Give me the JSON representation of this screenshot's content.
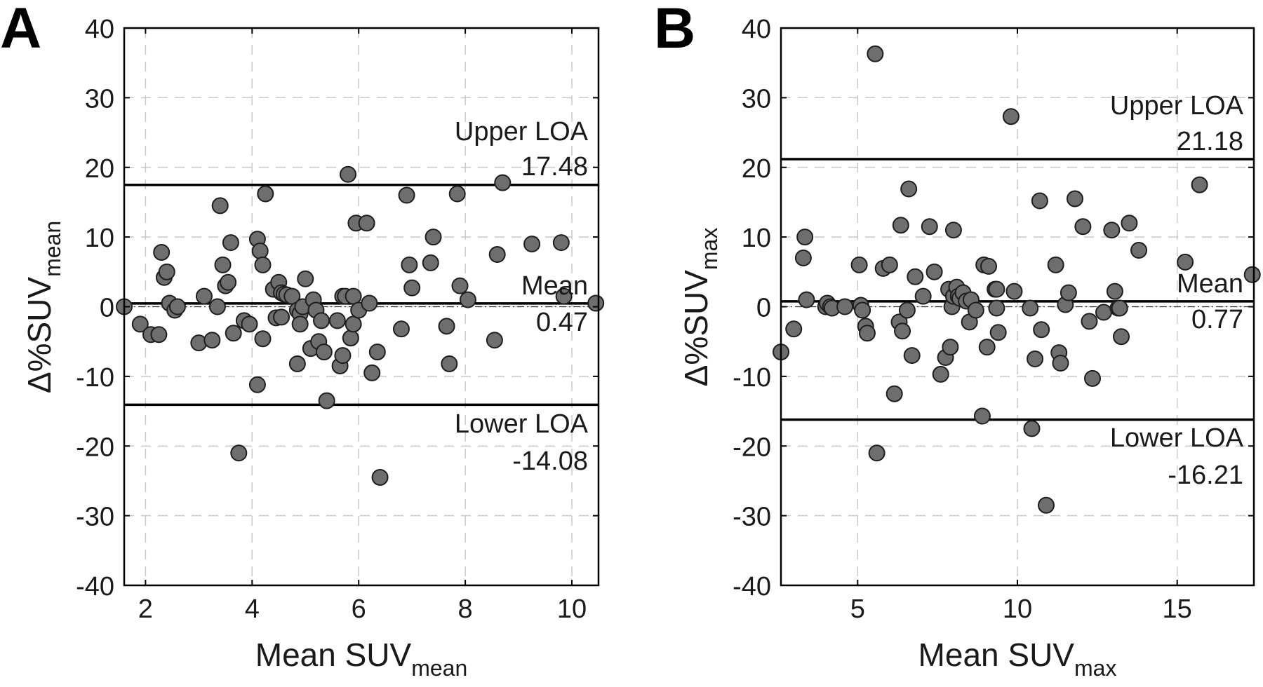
{
  "chart_data": [
    {
      "type": "scatter",
      "panel_label": "A",
      "xlabel": "Mean SUV",
      "xlabel_sub": "mean",
      "ylabel_prefix": "Δ%SUV",
      "ylabel_sub": "mean",
      "xlim": [
        1.6,
        10.5
      ],
      "ylim": [
        -40,
        40
      ],
      "xticks": [
        2,
        4,
        6,
        8,
        10
      ],
      "yticks": [
        -40,
        -30,
        -20,
        -10,
        0,
        10,
        20,
        30,
        40
      ],
      "grid": true,
      "points_x": [
        1.6,
        1.9,
        2.1,
        2.25,
        2.3,
        2.35,
        2.4,
        2.45,
        2.55,
        2.6,
        3.0,
        3.1,
        3.25,
        3.35,
        3.4,
        3.45,
        3.5,
        3.55,
        3.6,
        3.65,
        3.75,
        3.85,
        3.95,
        4.1,
        4.1,
        4.15,
        4.2,
        4.2,
        4.25,
        4.4,
        4.45,
        4.5,
        4.55,
        4.55,
        4.6,
        4.65,
        4.75,
        4.85,
        4.85,
        4.9,
        4.9,
        4.95,
        5.0,
        5.1,
        5.15,
        5.2,
        5.25,
        5.3,
        5.35,
        5.4,
        5.6,
        5.65,
        5.7,
        5.7,
        5.75,
        5.8,
        5.85,
        5.9,
        5.9,
        5.95,
        6.0,
        6.15,
        6.2,
        6.25,
        6.35,
        6.4,
        6.8,
        6.9,
        6.95,
        7.0,
        7.35,
        7.4,
        7.65,
        7.7,
        7.85,
        7.9,
        8.05,
        8.55,
        8.6,
        8.7,
        9.25,
        9.8,
        9.85,
        10.45
      ],
      "points_y": [
        0,
        -2.5,
        -4,
        -4,
        7.8,
        4.2,
        5,
        0.5,
        -0.5,
        0,
        -5.2,
        1.5,
        -4.8,
        0,
        14.5,
        6,
        3,
        3.5,
        9.2,
        -3.8,
        -21,
        -2,
        -2.5,
        -11.2,
        9.7,
        8,
        6,
        -4.6,
        16.2,
        2.5,
        -1.6,
        3.5,
        -1.5,
        2,
        1.8,
        1.7,
        1.5,
        -0.5,
        -8.2,
        -1,
        -2.5,
        0,
        4,
        -6,
        1,
        -0.5,
        -5,
        -2,
        -6.5,
        -13.5,
        -2,
        -8.5,
        -7,
        1.5,
        1.5,
        19,
        -4.5,
        -2.5,
        1.5,
        12,
        -0.5,
        12,
        0.5,
        -9.5,
        -6.5,
        -24.5,
        -3.2,
        16,
        6,
        2.7,
        6.3,
        10,
        -2.8,
        -8.2,
        16.2,
        3,
        1,
        -4.8,
        7.5,
        17.8,
        9,
        9.2,
        1.5,
        0.5
      ],
      "mean_line": 0.47,
      "upper_loa": 17.48,
      "lower_loa": -14.08,
      "labels": {
        "upper_title": "Upper LOA",
        "upper_value": "17.48",
        "mean_title": "Mean",
        "mean_value": "0.47",
        "lower_title": "Lower LOA",
        "lower_value": "-14.08"
      }
    },
    {
      "type": "scatter",
      "panel_label": "B",
      "xlabel": "Mean SUV",
      "xlabel_sub": "max",
      "ylabel_prefix": "Δ%SUV",
      "ylabel_sub": "max",
      "xlim": [
        2.6,
        17.4
      ],
      "ylim": [
        -40,
        40
      ],
      "xticks": [
        5,
        10,
        15
      ],
      "yticks": [
        -40,
        -30,
        -20,
        -10,
        0,
        10,
        20,
        30,
        40
      ],
      "grid": true,
      "points_x": [
        2.6,
        3.0,
        3.3,
        3.35,
        3.4,
        4.0,
        4.05,
        4.15,
        4.2,
        4.6,
        5.05,
        5.1,
        5.15,
        5.25,
        5.3,
        5.55,
        5.6,
        5.8,
        6.0,
        6.15,
        6.3,
        6.35,
        6.4,
        6.55,
        6.6,
        6.7,
        6.8,
        7.05,
        7.25,
        7.4,
        7.6,
        7.75,
        7.85,
        7.9,
        7.95,
        8.0,
        8.0,
        8.1,
        8.15,
        8.2,
        8.3,
        8.4,
        8.5,
        8.55,
        8.7,
        8.9,
        8.95,
        9.05,
        9.1,
        9.3,
        9.35,
        9.35,
        9.4,
        9.8,
        9.9,
        10.4,
        10.45,
        10.55,
        10.7,
        10.75,
        10.9,
        11.2,
        11.3,
        11.35,
        11.5,
        11.6,
        11.8,
        12.05,
        12.25,
        12.35,
        12.7,
        12.95,
        13.05,
        13.15,
        13.2,
        13.25,
        13.5,
        13.8,
        15.25,
        15.7,
        17.35
      ],
      "points_y": [
        -6.5,
        -3.2,
        7,
        10,
        1,
        0,
        0.5,
        0,
        -0.2,
        0,
        6,
        0.2,
        -0.5,
        -2.8,
        -3.8,
        36.3,
        -21,
        5.5,
        6,
        -12.5,
        -2.2,
        11.7,
        -3.5,
        -0.5,
        16.9,
        -7,
        4.3,
        1.5,
        11.5,
        5,
        -9.7,
        -7.3,
        2.5,
        -5.8,
        0,
        11,
        1.5,
        2.8,
        1.5,
        1.2,
        2,
        0.8,
        -2.2,
        1,
        -0.5,
        -15.7,
        6,
        -5.8,
        5.8,
        2.5,
        2.5,
        -0.2,
        -3.7,
        27.3,
        2.2,
        -0.2,
        -17.5,
        -7.5,
        15.2,
        -3.3,
        -28.5,
        6,
        -6.6,
        -8.1,
        0.3,
        2,
        15.5,
        11.5,
        -2.1,
        -10.3,
        -0.8,
        11,
        2.2,
        -0.2,
        -0.2,
        -4.3,
        12,
        8.1,
        6.4,
        17.5,
        4.6
      ],
      "mean_line": 0.77,
      "upper_loa": 21.18,
      "lower_loa": -16.21,
      "labels": {
        "upper_title": "Upper LOA",
        "upper_value": "21.18",
        "mean_title": "Mean",
        "mean_value": "0.77",
        "lower_title": "Lower LOA",
        "lower_value": "-16.21"
      }
    }
  ]
}
